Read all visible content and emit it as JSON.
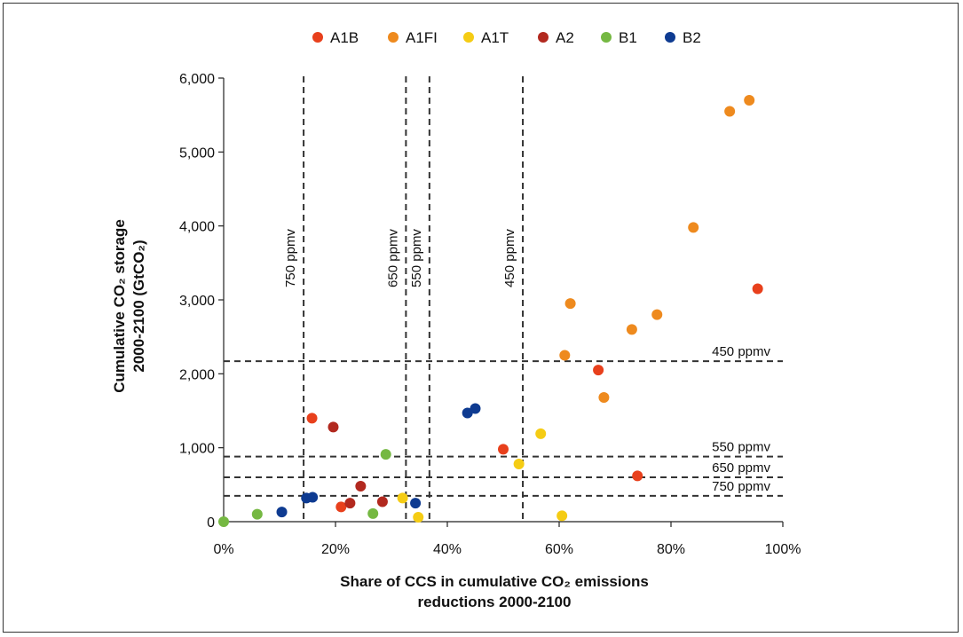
{
  "chart_data": {
    "type": "scatter",
    "title": "",
    "xlabel_lines": [
      "Share of CCS in cumulative CO₂ emissions",
      "reductions 2000-2100"
    ],
    "ylabel_lines": [
      "Cumulative CO₂ storage",
      "2000-2100 (GtCO₂)"
    ],
    "xlim": [
      0,
      100
    ],
    "ylim": [
      0,
      6000
    ],
    "x_ticks": [
      0,
      20,
      40,
      60,
      80,
      100
    ],
    "x_tick_labels": [
      "0%",
      "20%",
      "40%",
      "60%",
      "80%",
      "100%"
    ],
    "y_ticks": [
      0,
      1000,
      2000,
      3000,
      4000,
      5000,
      6000
    ],
    "y_tick_labels": [
      "0",
      "1,000",
      "2,000",
      "3,000",
      "4,000",
      "5,000",
      "6,000"
    ],
    "grid": false,
    "legend_position": "top",
    "series": [
      {
        "name": "A1B",
        "color": "#e8401c",
        "points": [
          [
            15.8,
            1400
          ],
          [
            21,
            200
          ],
          [
            50,
            980
          ],
          [
            67,
            2050
          ],
          [
            74,
            620
          ],
          [
            95.5,
            3150
          ]
        ]
      },
      {
        "name": "A1FI",
        "color": "#ee8a1e",
        "points": [
          [
            61,
            2250
          ],
          [
            62,
            2950
          ],
          [
            68,
            1680
          ],
          [
            73,
            2600
          ],
          [
            77.5,
            2800
          ],
          [
            84,
            3980
          ],
          [
            90.5,
            5550
          ],
          [
            94,
            5700
          ]
        ]
      },
      {
        "name": "A1T",
        "color": "#f5cc14",
        "points": [
          [
            32,
            320
          ],
          [
            34.8,
            60
          ],
          [
            52.8,
            780
          ],
          [
            56.7,
            1190
          ],
          [
            60.5,
            80
          ]
        ]
      },
      {
        "name": "A2",
        "color": "#b2291f",
        "points": [
          [
            19.6,
            1280
          ],
          [
            22.6,
            250
          ],
          [
            24.5,
            480
          ],
          [
            28.4,
            270
          ]
        ]
      },
      {
        "name": "B1",
        "color": "#75b842",
        "points": [
          [
            0,
            0
          ],
          [
            6,
            100
          ],
          [
            26.7,
            110
          ],
          [
            29,
            910
          ]
        ]
      },
      {
        "name": "B2",
        "color": "#0e3b91",
        "points": [
          [
            10.4,
            130
          ],
          [
            14.8,
            320
          ],
          [
            15.9,
            330
          ],
          [
            34.3,
            250
          ],
          [
            43.6,
            1470
          ],
          [
            45,
            1530
          ]
        ]
      }
    ],
    "vertical_lines": [
      {
        "x": 14.3,
        "label": "750 ppmv"
      },
      {
        "x": 32.6,
        "label": "650 ppmv"
      },
      {
        "x": 36.8,
        "label": "550 ppmv"
      },
      {
        "x": 53.5,
        "label": "450 ppmv"
      }
    ],
    "horizontal_lines": [
      {
        "y": 2170,
        "label": "450 ppmv"
      },
      {
        "y": 880,
        "label": "550 ppmv"
      },
      {
        "y": 600,
        "label": "650 ppmv"
      },
      {
        "y": 350,
        "label": "750 ppmv"
      }
    ]
  }
}
